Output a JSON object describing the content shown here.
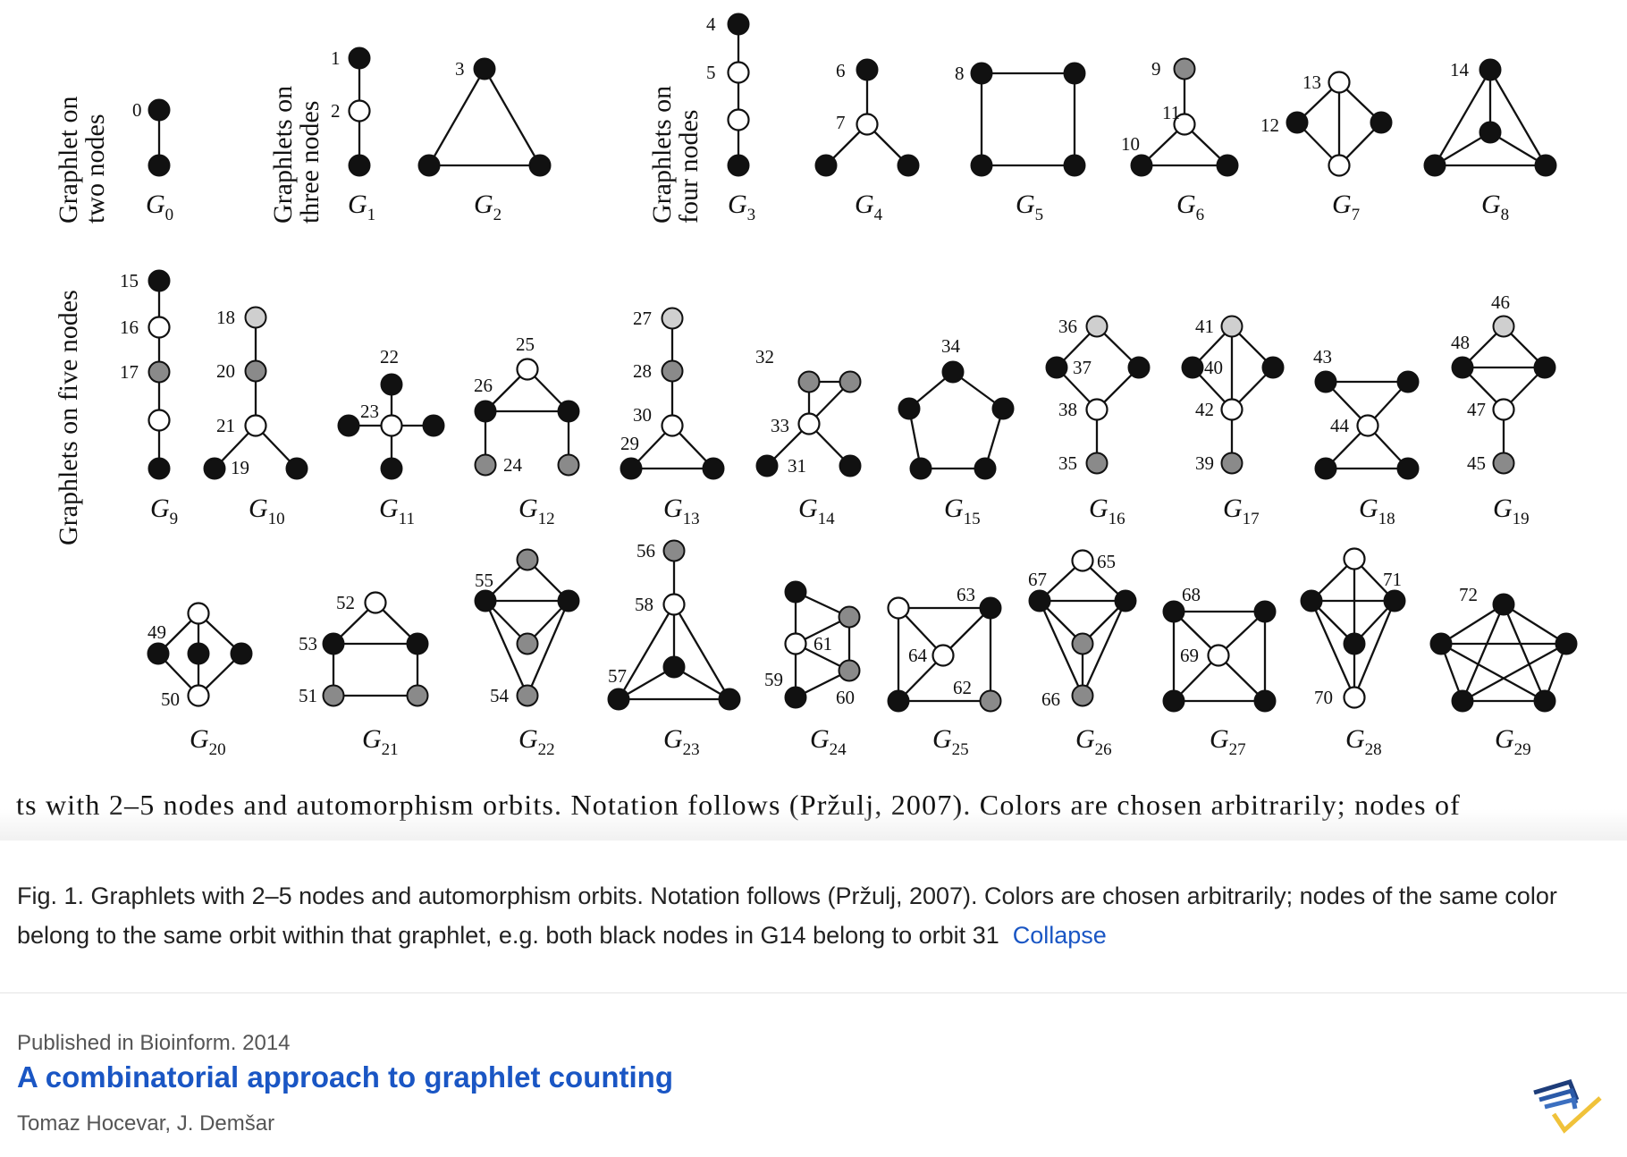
{
  "figure": {
    "row_labels": {
      "two_nodes": [
        "Graphlet on",
        "two nodes"
      ],
      "three_nodes": [
        "Graphlets on",
        "three nodes"
      ],
      "four_nodes": [
        "Graphlets on",
        "four nodes"
      ],
      "five_nodes": "Graphlets on five nodes"
    },
    "graphlet_letter": "G",
    "graphlets": [
      "0",
      "1",
      "2",
      "3",
      "4",
      "5",
      "6",
      "7",
      "8",
      "9",
      "10",
      "11",
      "12",
      "13",
      "14",
      "15",
      "16",
      "17",
      "18",
      "19",
      "20",
      "21",
      "22",
      "23",
      "24",
      "25",
      "26",
      "27",
      "28",
      "29"
    ],
    "orbits": [
      "0",
      "1",
      "2",
      "3",
      "4",
      "5",
      "6",
      "7",
      "8",
      "9",
      "10",
      "11",
      "12",
      "13",
      "14",
      "15",
      "16",
      "17",
      "18",
      "19",
      "20",
      "21",
      "22",
      "23",
      "24",
      "25",
      "26",
      "27",
      "28",
      "29",
      "30",
      "31",
      "32",
      "33",
      "34",
      "35",
      "36",
      "37",
      "38",
      "39",
      "40",
      "41",
      "42",
      "43",
      "44",
      "45",
      "46",
      "47",
      "48",
      "49",
      "50",
      "51",
      "52",
      "53",
      "54",
      "55",
      "56",
      "57",
      "58",
      "59",
      "60",
      "61",
      "62",
      "63",
      "64",
      "65",
      "66",
      "67",
      "68",
      "69",
      "70",
      "71",
      "72"
    ],
    "node_colors": {
      "black": "#111111",
      "white": "#ffffff",
      "gray": "#8a8a8a",
      "light_gray": "#cfcfcf"
    },
    "clipped_caption": "ts with 2–5 nodes and automorphism orbits. Notation follows (Pržulj, 2007). Colors are chosen arbitrarily; nodes of"
  },
  "caption": {
    "text": "Fig. 1. Graphlets with 2–5 nodes and automorphism orbits. Notation follows (Pržulj, 2007). Colors are chosen arbitrarily; nodes of the same color belong to the same orbit within that graphlet, e.g. both black nodes in G14 belong to orbit 31",
    "toggle_label": "Collapse"
  },
  "publication": {
    "venue": "Published in Bioinform. 2014",
    "title": "A combinatorial approach to graphlet counting",
    "authors": "Tomaz Hocevar, J. Demšar"
  },
  "colors": {
    "link": "#1a56c4",
    "text": "#222222",
    "muted": "#555555"
  },
  "icons": {
    "publisher_logo": "publisher-logo-icon"
  }
}
